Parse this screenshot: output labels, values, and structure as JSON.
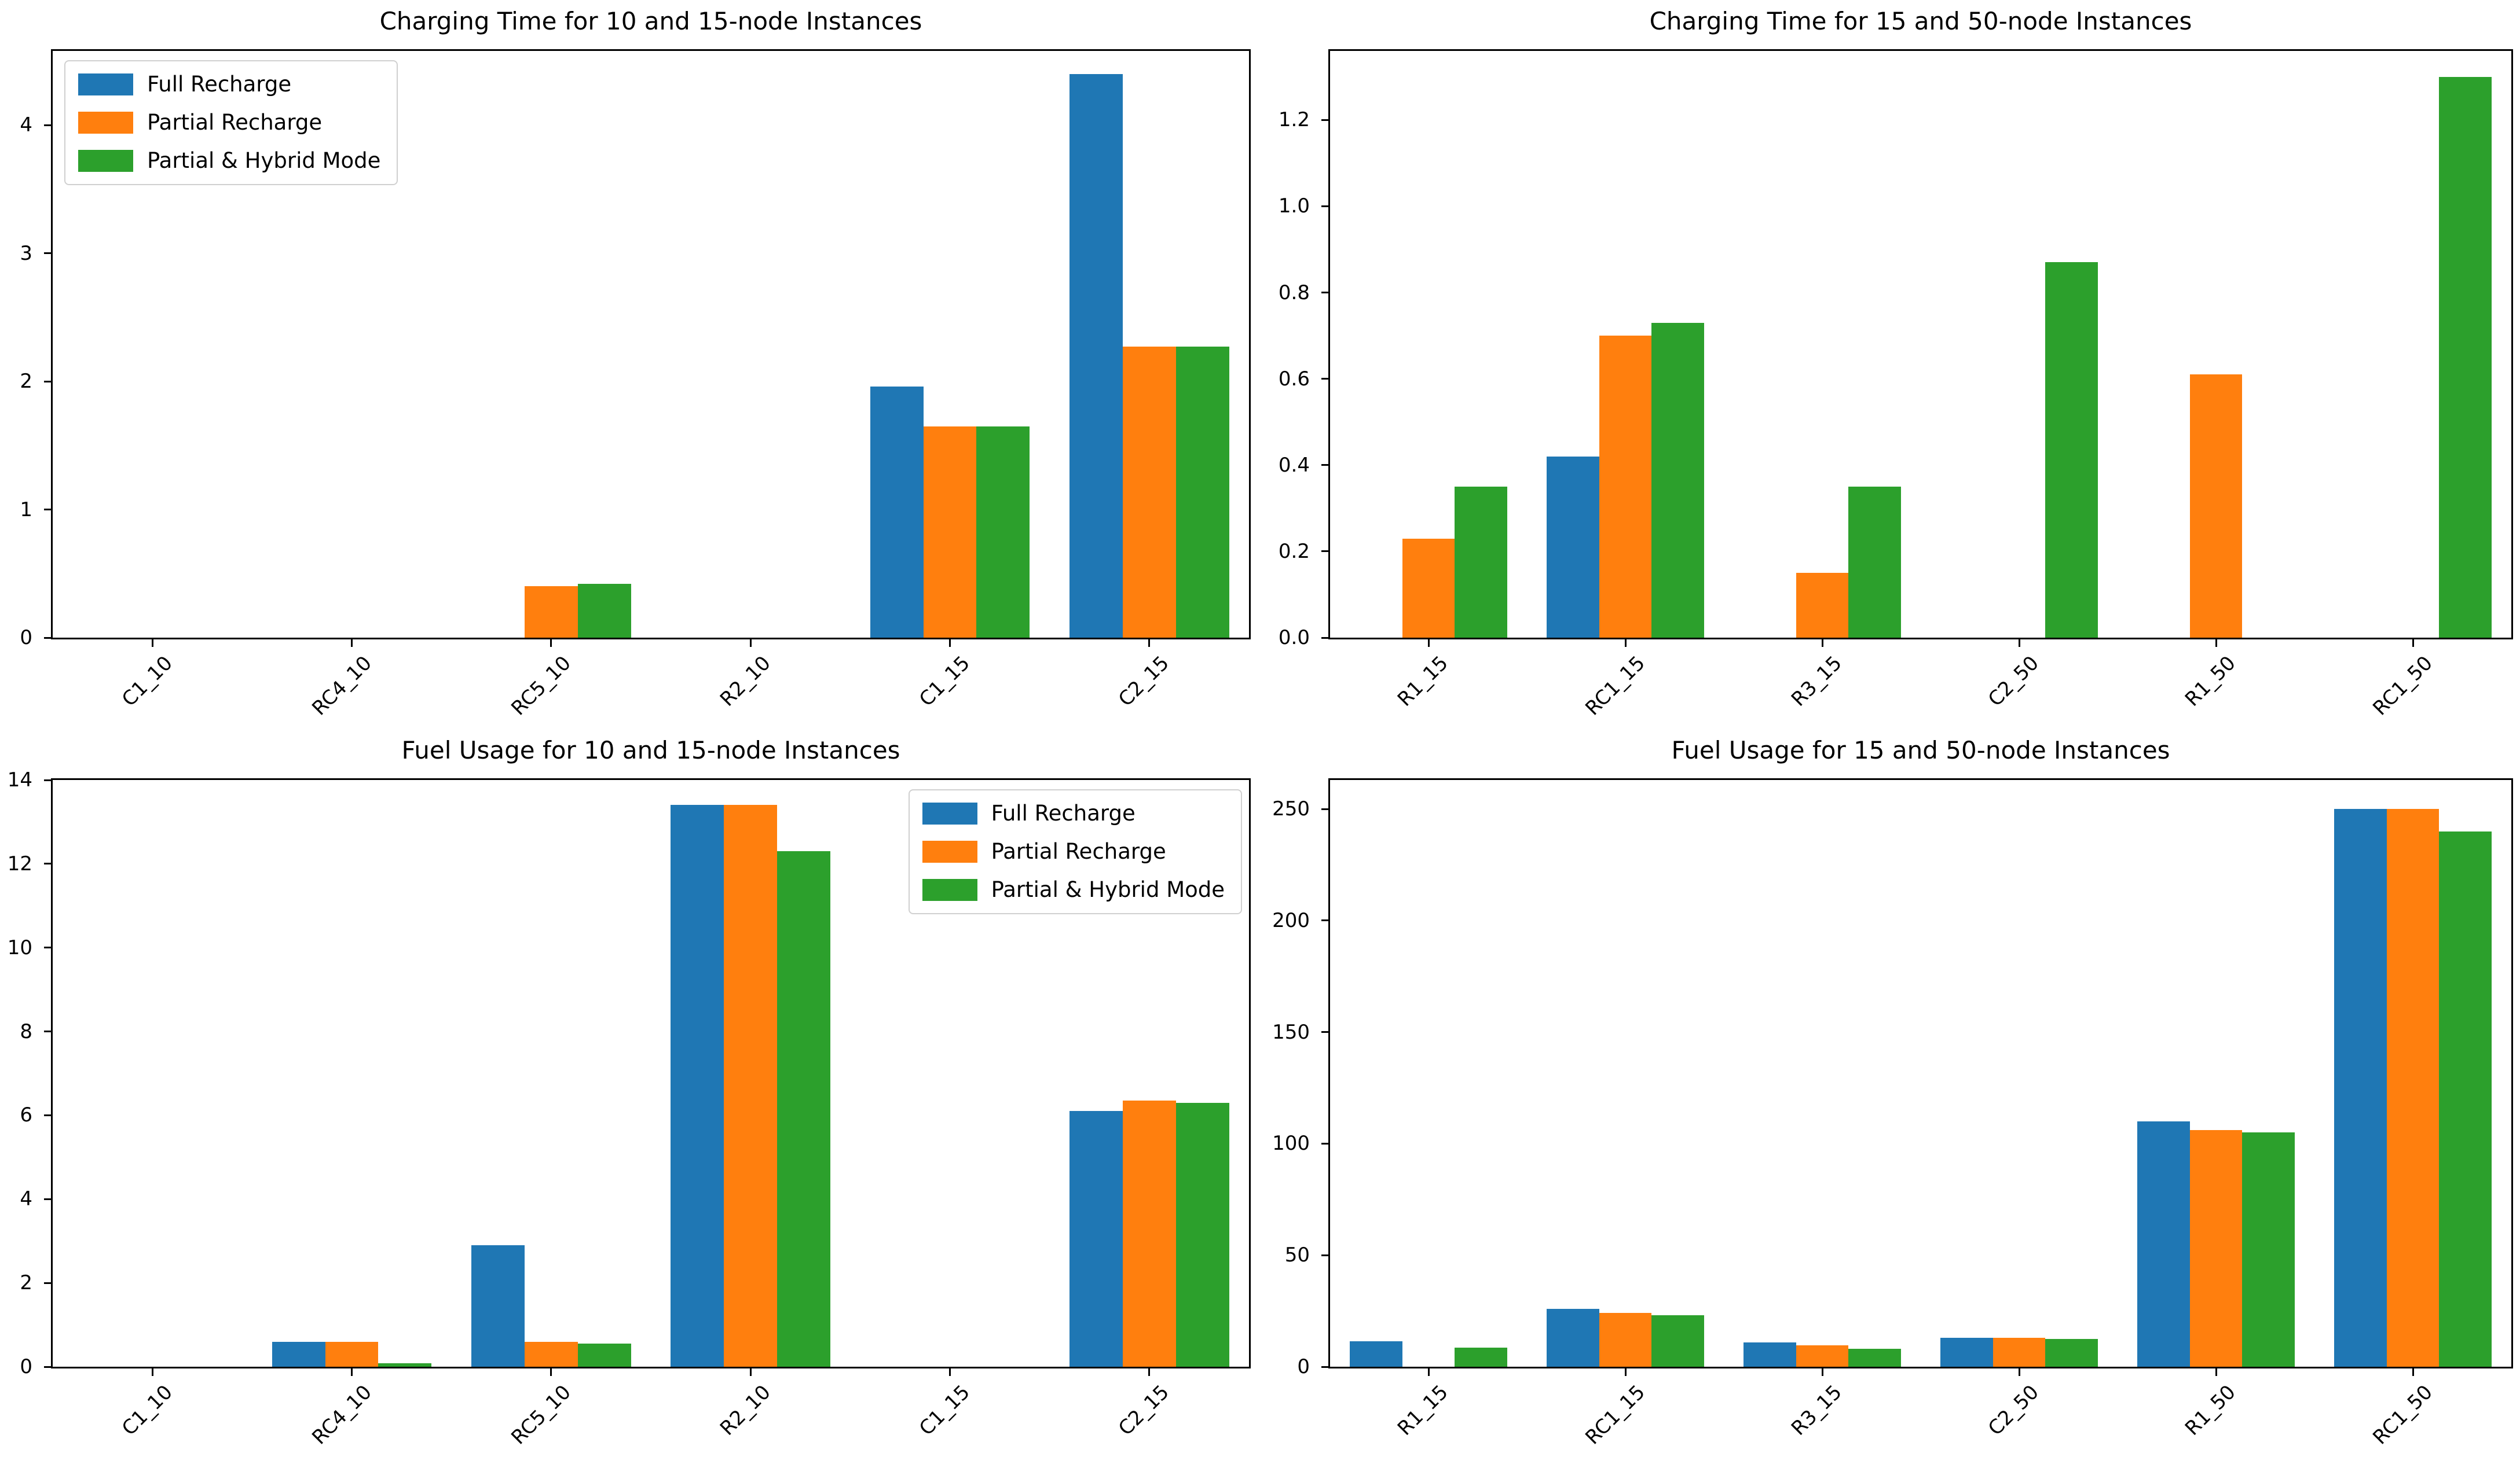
{
  "figure": {
    "background": "#ffffff"
  },
  "legend": {
    "labels": [
      "Full Recharge",
      "Partial Recharge",
      "Partial & Hybrid Mode"
    ]
  },
  "colors": {
    "full_recharge": "#1f77b4",
    "partial_recharge": "#ff7f0e",
    "partial_hybrid": "#2ca02c",
    "axis": "#000000"
  },
  "chart_data": [
    {
      "type": "bar",
      "title": "Charging Time for 10 and 15-node Instances",
      "categories": [
        "C1_10",
        "RC4_10",
        "RC5_10",
        "R2_10",
        "C1_15",
        "C2_15"
      ],
      "series": [
        {
          "name": "Full Recharge",
          "values": [
            0,
            0,
            0,
            0,
            1.96,
            4.4
          ]
        },
        {
          "name": "Partial Recharge",
          "values": [
            0,
            0,
            0.4,
            0,
            1.65,
            2.27
          ]
        },
        {
          "name": "Partial & Hybrid Mode",
          "values": [
            0,
            0,
            0.42,
            0,
            1.65,
            2.27
          ]
        }
      ],
      "ylim": [
        0,
        4.58
      ],
      "yticks": [
        0,
        1,
        2,
        3,
        4
      ],
      "ytick_labels": [
        "0",
        "1",
        "2",
        "3",
        "4"
      ],
      "legend_position": "upper-left",
      "grid": false
    },
    {
      "type": "bar",
      "title": "Charging Time for 15 and 50-node Instances",
      "categories": [
        "R1_15",
        "RC1_15",
        "R3_15",
        "C2_50",
        "R1_50",
        "RC1_50"
      ],
      "series": [
        {
          "name": "Full Recharge",
          "values": [
            0,
            0.42,
            0,
            0,
            0,
            0
          ]
        },
        {
          "name": "Partial Recharge",
          "values": [
            0.23,
            0.7,
            0.15,
            0,
            0.61,
            0
          ]
        },
        {
          "name": "Partial & Hybrid Mode",
          "values": [
            0.35,
            0.73,
            0.35,
            0.87,
            0,
            1.3
          ]
        }
      ],
      "ylim": [
        0,
        1.36
      ],
      "yticks": [
        0,
        0.2,
        0.4,
        0.6,
        0.8,
        1.0,
        1.2
      ],
      "ytick_labels": [
        "0.0",
        "0.2",
        "0.4",
        "0.6",
        "0.8",
        "1.0",
        "1.2"
      ],
      "legend_position": "none",
      "grid": false
    },
    {
      "type": "bar",
      "title": "Fuel Usage for 10 and 15-node Instances",
      "categories": [
        "C1_10",
        "RC4_10",
        "RC5_10",
        "R2_10",
        "C1_15",
        "C2_15"
      ],
      "series": [
        {
          "name": "Full Recharge",
          "values": [
            0,
            0.6,
            2.9,
            13.4,
            0,
            6.1
          ]
        },
        {
          "name": "Partial Recharge",
          "values": [
            0,
            0.6,
            0.6,
            13.4,
            0,
            6.35
          ]
        },
        {
          "name": "Partial & Hybrid Mode",
          "values": [
            0,
            0.08,
            0.55,
            12.3,
            0,
            6.3
          ]
        }
      ],
      "ylim": [
        0,
        14
      ],
      "yticks": [
        0,
        2,
        4,
        6,
        8,
        10,
        12,
        14
      ],
      "ytick_labels": [
        "0",
        "2",
        "4",
        "6",
        "8",
        "10",
        "12",
        "14"
      ],
      "legend_position": "upper-right",
      "grid": false
    },
    {
      "type": "bar",
      "title": "Fuel Usage for 15 and 50-node Instances",
      "categories": [
        "R1_15",
        "RC1_15",
        "R3_15",
        "C2_50",
        "R1_50",
        "RC1_50"
      ],
      "series": [
        {
          "name": "Full Recharge",
          "values": [
            11.5,
            26,
            11,
            13,
            110,
            250
          ]
        },
        {
          "name": "Partial Recharge",
          "values": [
            0,
            24,
            9.5,
            13,
            106,
            250
          ]
        },
        {
          "name": "Partial & Hybrid Mode",
          "values": [
            8.5,
            23,
            8,
            12.5,
            105,
            240
          ]
        }
      ],
      "ylim": [
        0,
        263
      ],
      "yticks": [
        0,
        50,
        100,
        150,
        200,
        250
      ],
      "ytick_labels": [
        "0",
        "50",
        "100",
        "150",
        "200",
        "250"
      ],
      "legend_position": "none",
      "grid": false
    }
  ]
}
